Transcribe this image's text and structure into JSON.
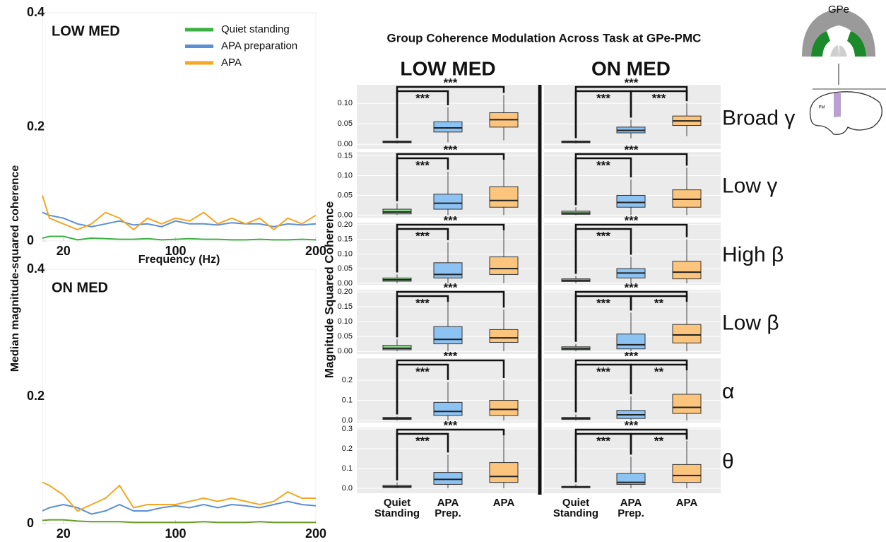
{
  "chart_data": [
    {
      "type": "line",
      "title": "LOW MED",
      "y_label": "Median magnitude-squared coherence",
      "x_label": "Frequency (Hz)",
      "legend": "upper right",
      "x": [
        5,
        10,
        20,
        30,
        40,
        50,
        60,
        70,
        80,
        90,
        100,
        110,
        120,
        130,
        140,
        150,
        160,
        170,
        180,
        190,
        200
      ],
      "xlim": [
        5,
        200
      ],
      "xticks": [
        20,
        100,
        200
      ],
      "ylim": [
        0,
        0.4
      ],
      "yticks": [
        0,
        0.2,
        0.4
      ],
      "series": [
        {
          "name": "Quiet standing",
          "color": "#3cb043",
          "values": [
            0.005,
            0.008,
            0.008,
            0.002,
            0.005,
            0.004,
            0.003,
            0.003,
            0.004,
            0.002,
            0.003,
            0.004,
            0.003,
            0.003,
            0.002,
            0.002,
            0.003,
            0.002,
            0.002,
            0.003,
            0.002
          ]
        },
        {
          "name": "APA preparation",
          "color": "#5b8fd6",
          "values": [
            0.05,
            0.045,
            0.04,
            0.03,
            0.025,
            0.03,
            0.035,
            0.028,
            0.03,
            0.025,
            0.035,
            0.03,
            0.03,
            0.028,
            0.032,
            0.03,
            0.03,
            0.025,
            0.03,
            0.028,
            0.03
          ]
        },
        {
          "name": "APA",
          "color": "#f5a623",
          "values": [
            0.08,
            0.04,
            0.03,
            0.02,
            0.03,
            0.05,
            0.04,
            0.02,
            0.04,
            0.03,
            0.04,
            0.035,
            0.05,
            0.03,
            0.04,
            0.03,
            0.04,
            0.02,
            0.04,
            0.03,
            0.045
          ]
        }
      ]
    },
    {
      "type": "line",
      "title": "ON MED",
      "x": [
        5,
        10,
        20,
        30,
        40,
        50,
        60,
        70,
        80,
        90,
        100,
        110,
        120,
        130,
        140,
        150,
        160,
        170,
        180,
        190,
        200
      ],
      "xlim": [
        5,
        200
      ],
      "xticks": [
        20,
        100,
        200
      ],
      "ylim": [
        0,
        0.4
      ],
      "yticks": [
        0,
        0.2,
        0.4
      ],
      "series": [
        {
          "color": "#6a9a2a",
          "values": [
            0.005,
            0.006,
            0.006,
            0.004,
            0.003,
            0.003,
            0.003,
            0.002,
            0.002,
            0.002,
            0.002,
            0.002,
            0.003,
            0.002,
            0.002,
            0.002,
            0.003,
            0.002,
            0.002,
            0.002,
            0.002
          ]
        },
        {
          "color": "#5b8fd6",
          "values": [
            0.02,
            0.025,
            0.03,
            0.025,
            0.015,
            0.02,
            0.03,
            0.02,
            0.02,
            0.025,
            0.028,
            0.025,
            0.03,
            0.025,
            0.03,
            0.028,
            0.025,
            0.03,
            0.035,
            0.03,
            0.028
          ]
        },
        {
          "color": "#f5a623",
          "values": [
            0.065,
            0.06,
            0.045,
            0.02,
            0.03,
            0.04,
            0.06,
            0.025,
            0.03,
            0.03,
            0.03,
            0.035,
            0.04,
            0.035,
            0.04,
            0.035,
            0.03,
            0.035,
            0.05,
            0.04,
            0.04
          ]
        }
      ]
    },
    {
      "type": "box",
      "title": "Group Coherence Modulation Across Task at GPe-PMC",
      "y_label": "Magnitude Squared Coherence",
      "columns": [
        "LOW MED",
        "ON MED"
      ],
      "categories": [
        [
          "Quiet",
          "Standing"
        ],
        [
          "APA",
          "Prep."
        ],
        [
          "APA"
        ]
      ],
      "colors": [
        "#8fd88f",
        "#8cc3f2",
        "#fcc57e"
      ],
      "rows": [
        {
          "label": "Broad γ",
          "ylim": [
            -0.015,
            0.145
          ],
          "yticks": [
            {
              "value": 0,
              "label": "0.00"
            },
            {
              "value": 0.05,
              "label": "0.05"
            },
            {
              "value": 0.1,
              "label": "0.10"
            }
          ],
          "panels": [
            {
              "boxes": [
                [
                  0.002,
                  0.004,
                  0.006,
                  0.008,
                  0.01
                ],
                [
                  0.005,
                  0.03,
                  0.04,
                  0.055,
                  0.09
                ],
                [
                  0.01,
                  0.042,
                  0.06,
                  0.077,
                  0.12
                ]
              ],
              "brackets": [
                {
                  "from": 0,
                  "to": 2,
                  "label": "***"
                },
                {
                  "from": 0,
                  "to": 1,
                  "label": "***"
                }
              ]
            },
            {
              "boxes": [
                [
                  0.002,
                  0.004,
                  0.006,
                  0.008,
                  0.01
                ],
                [
                  0.015,
                  0.028,
                  0.034,
                  0.042,
                  0.06
                ],
                [
                  0.02,
                  0.046,
                  0.057,
                  0.069,
                  0.1
                ]
              ],
              "brackets": [
                {
                  "from": 0,
                  "to": 2,
                  "label": "***"
                },
                {
                  "from": 0,
                  "to": 1,
                  "label": "***"
                },
                {
                  "from": 1,
                  "to": 2,
                  "label": "***"
                }
              ]
            }
          ]
        },
        {
          "label": "Low γ",
          "ylim": [
            -0.01,
            0.16
          ],
          "yticks": [
            {
              "value": 0,
              "label": "0.00"
            },
            {
              "value": 0.05,
              "label": "0.05"
            },
            {
              "value": 0.1,
              "label": "0.10"
            },
            {
              "value": 0.15,
              "label": "0.15"
            }
          ],
          "panels": [
            {
              "boxes": [
                [
                  0,
                  0.003,
                  0.008,
                  0.015,
                  0.03
                ],
                [
                  0,
                  0.015,
                  0.03,
                  0.053,
                  0.11
                ],
                [
                  0,
                  0.02,
                  0.037,
                  0.072,
                  0.14
                ]
              ],
              "brackets": [
                {
                  "from": 0,
                  "to": 2,
                  "label": "***"
                },
                {
                  "from": 0,
                  "to": 1,
                  "label": "***"
                }
              ]
            },
            {
              "boxes": [
                [
                  0,
                  0.002,
                  0.005,
                  0.01,
                  0.02
                ],
                [
                  0,
                  0.02,
                  0.032,
                  0.05,
                  0.09
                ],
                [
                  0,
                  0.02,
                  0.04,
                  0.064,
                  0.12
                ]
              ],
              "brackets": [
                {
                  "from": 0,
                  "to": 2,
                  "label": "***"
                },
                {
                  "from": 0,
                  "to": 1,
                  "label": "***"
                }
              ]
            }
          ]
        },
        {
          "label": "High β",
          "ylim": [
            -0.01,
            0.207
          ],
          "yticks": [
            {
              "value": 0,
              "label": "0.00"
            },
            {
              "value": 0.05,
              "label": "0.05"
            },
            {
              "value": 0.1,
              "label": "0.10"
            },
            {
              "value": 0.15,
              "label": "0.15"
            },
            {
              "value": 0.2,
              "label": "0.20"
            }
          ],
          "panels": [
            {
              "boxes": [
                [
                  0,
                  0.007,
                  0.012,
                  0.018,
                  0.03
                ],
                [
                  0,
                  0.018,
                  0.03,
                  0.07,
                  0.14
                ],
                [
                  0,
                  0.03,
                  0.05,
                  0.09,
                  0.18
                ]
              ],
              "brackets": [
                {
                  "from": 0,
                  "to": 2,
                  "label": "***"
                },
                {
                  "from": 0,
                  "to": 1,
                  "label": "***"
                }
              ]
            },
            {
              "boxes": [
                [
                  0,
                  0.006,
                  0.01,
                  0.015,
                  0.025
                ],
                [
                  0,
                  0.018,
                  0.035,
                  0.05,
                  0.09
                ],
                [
                  0,
                  0.015,
                  0.038,
                  0.075,
                  0.15
                ]
              ],
              "brackets": [
                {
                  "from": 0,
                  "to": 2,
                  "label": "***"
                },
                {
                  "from": 0,
                  "to": 1,
                  "label": "***"
                }
              ]
            }
          ]
        },
        {
          "label": "Low β",
          "ylim": [
            -0.014,
            0.207
          ],
          "yticks": [
            {
              "value": 0,
              "label": "0.00"
            },
            {
              "value": 0.05,
              "label": "0.05"
            },
            {
              "value": 0.1,
              "label": "0.10"
            },
            {
              "value": 0.15,
              "label": "0.15"
            },
            {
              "value": 0.2,
              "label": "0.20"
            }
          ],
          "panels": [
            {
              "boxes": [
                [
                  0,
                  0.005,
                  0.01,
                  0.02,
                  0.04
                ],
                [
                  0,
                  0.025,
                  0.04,
                  0.083,
                  0.17
                ],
                [
                  0,
                  0.03,
                  0.045,
                  0.073,
                  0.14
                ]
              ],
              "brackets": [
                {
                  "from": 0,
                  "to": 2,
                  "label": "***"
                },
                {
                  "from": 0,
                  "to": 1,
                  "label": "***"
                }
              ]
            },
            {
              "boxes": [
                [
                  0,
                  0.005,
                  0.009,
                  0.015,
                  0.025
                ],
                [
                  0,
                  0.008,
                  0.022,
                  0.058,
                  0.13
                ],
                [
                  0,
                  0.028,
                  0.055,
                  0.09,
                  0.18
                ]
              ],
              "brackets": [
                {
                  "from": 0,
                  "to": 2,
                  "label": "***"
                },
                {
                  "from": 0,
                  "to": 1,
                  "label": "***"
                },
                {
                  "from": 1,
                  "to": 2,
                  "label": "**"
                }
              ]
            }
          ]
        },
        {
          "label": "α",
          "ylim": [
            -0.0175,
            0.309
          ],
          "yticks": [
            {
              "value": 0,
              "label": "0.0"
            },
            0.1,
            0.2
          ],
          "panels": [
            {
              "boxes": [
                [
                  0,
                  0.005,
                  0.01,
                  0.015,
                  0.02
                ],
                [
                  0,
                  0.025,
                  0.045,
                  0.09,
                  0.19
                ],
                [
                  0,
                  0.025,
                  0.055,
                  0.1,
                  0.2
                ]
              ],
              "brackets": [
                {
                  "from": 0,
                  "to": 2,
                  "label": "***"
                },
                {
                  "from": 0,
                  "to": 1,
                  "label": "***"
                }
              ]
            },
            {
              "boxes": [
                [
                  0,
                  0.005,
                  0.01,
                  0.015,
                  0.03
                ],
                [
                  0,
                  0.01,
                  0.028,
                  0.05,
                  0.12
                ],
                [
                  0,
                  0.035,
                  0.065,
                  0.13,
                  0.29
                ]
              ],
              "brackets": [
                {
                  "from": 0,
                  "to": 2,
                  "label": "***"
                },
                {
                  "from": 0,
                  "to": 1,
                  "label": "***"
                },
                {
                  "from": 1,
                  "to": 2,
                  "label": "**"
                }
              ]
            }
          ]
        },
        {
          "label": "θ",
          "ylim": [
            -0.032,
            0.307
          ],
          "yticks": [
            {
              "value": 0,
              "label": "0.0"
            },
            0.1,
            0.2,
            0.3
          ],
          "panels": [
            {
              "boxes": [
                [
                  0,
                  0.004,
                  0.008,
                  0.015,
                  0.03
                ],
                [
                  0,
                  0.02,
                  0.045,
                  0.08,
                  0.17
                ],
                [
                  0,
                  0.03,
                  0.06,
                  0.13,
                  0.29
                ]
              ],
              "brackets": [
                {
                  "from": 0,
                  "to": 2,
                  "label": "***"
                },
                {
                  "from": 0,
                  "to": 1,
                  "label": "***"
                }
              ]
            },
            {
              "boxes": [
                [
                  0,
                  0.003,
                  0.006,
                  0.01,
                  0.02
                ],
                [
                  0,
                  0.02,
                  0.03,
                  0.075,
                  0.16
                ],
                [
                  0,
                  0.03,
                  0.065,
                  0.12,
                  0.24
                ]
              ],
              "brackets": [
                {
                  "from": 0,
                  "to": 2,
                  "label": "***"
                },
                {
                  "from": 0,
                  "to": 1,
                  "label": "***"
                },
                {
                  "from": 1,
                  "to": 2,
                  "label": "**"
                }
              ]
            }
          ]
        }
      ]
    }
  ],
  "inset_labels": [
    "GPe",
    "PM"
  ]
}
